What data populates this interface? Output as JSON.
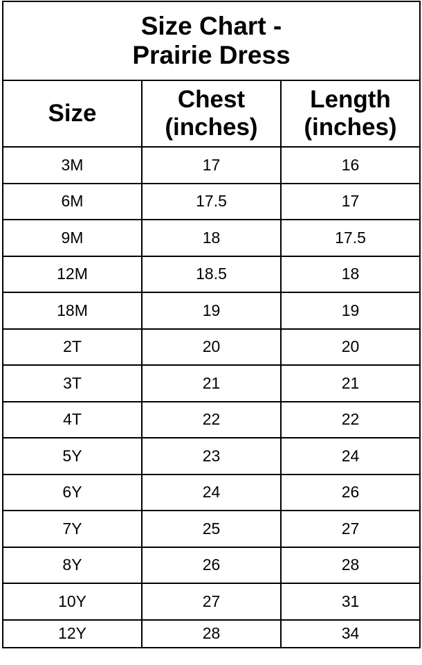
{
  "title_line1": "Size Chart -",
  "title_line2": "Prairie Dress",
  "headers": {
    "size": "Size",
    "chest_line1": "Chest",
    "chest_line2": "(inches)",
    "length_line1": "Length",
    "length_line2": "(inches)"
  },
  "rows": [
    {
      "size": "3M",
      "chest": "17",
      "length": "16"
    },
    {
      "size": "6M",
      "chest": "17.5",
      "length": "17"
    },
    {
      "size": "9M",
      "chest": "18",
      "length": "17.5"
    },
    {
      "size": "12M",
      "chest": "18.5",
      "length": "18"
    },
    {
      "size": "18M",
      "chest": "19",
      "length": "19"
    },
    {
      "size": "2T",
      "chest": "20",
      "length": "20"
    },
    {
      "size": "3T",
      "chest": "21",
      "length": "21"
    },
    {
      "size": "4T",
      "chest": "22",
      "length": "22"
    },
    {
      "size": "5Y",
      "chest": "23",
      "length": "24"
    },
    {
      "size": "6Y",
      "chest": "24",
      "length": "26"
    },
    {
      "size": "7Y",
      "chest": "25",
      "length": "27"
    },
    {
      "size": "8Y",
      "chest": "26",
      "length": "28"
    },
    {
      "size": "10Y",
      "chest": "27",
      "length": "31"
    },
    {
      "size": "12Y",
      "chest": "28",
      "length": "34"
    }
  ]
}
